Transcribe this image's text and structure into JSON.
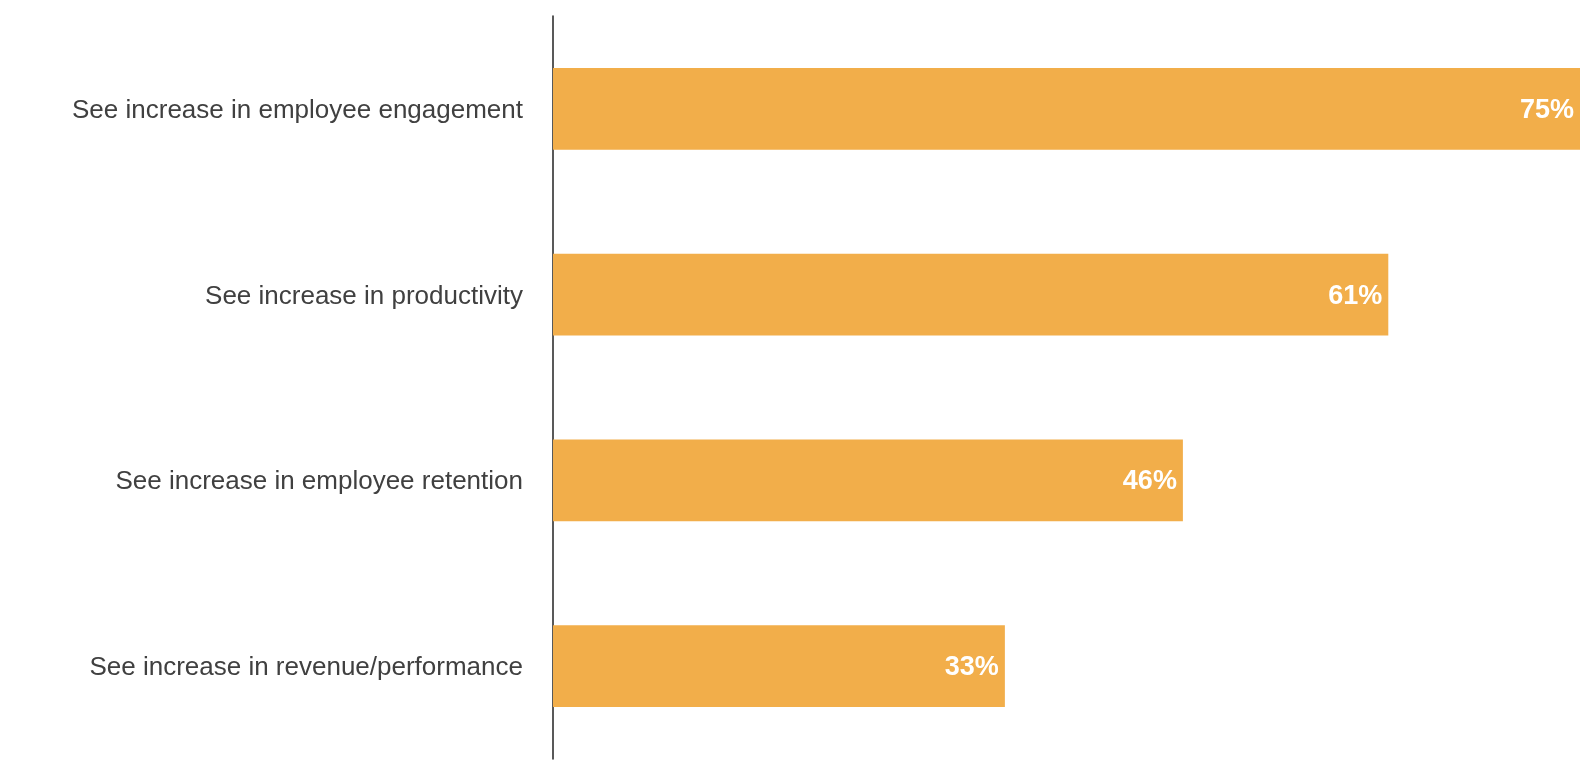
{
  "chart_data": {
    "type": "bar",
    "orientation": "horizontal",
    "categories": [
      "See increase in employee engagement",
      "See increase in productivity",
      "See increase in employee retention",
      "See increase in revenue/performance"
    ],
    "values": [
      75,
      61,
      46,
      33
    ],
    "value_labels": [
      "75%",
      "61%",
      "46%",
      "33%"
    ],
    "color": "#f2ae4a"
  }
}
